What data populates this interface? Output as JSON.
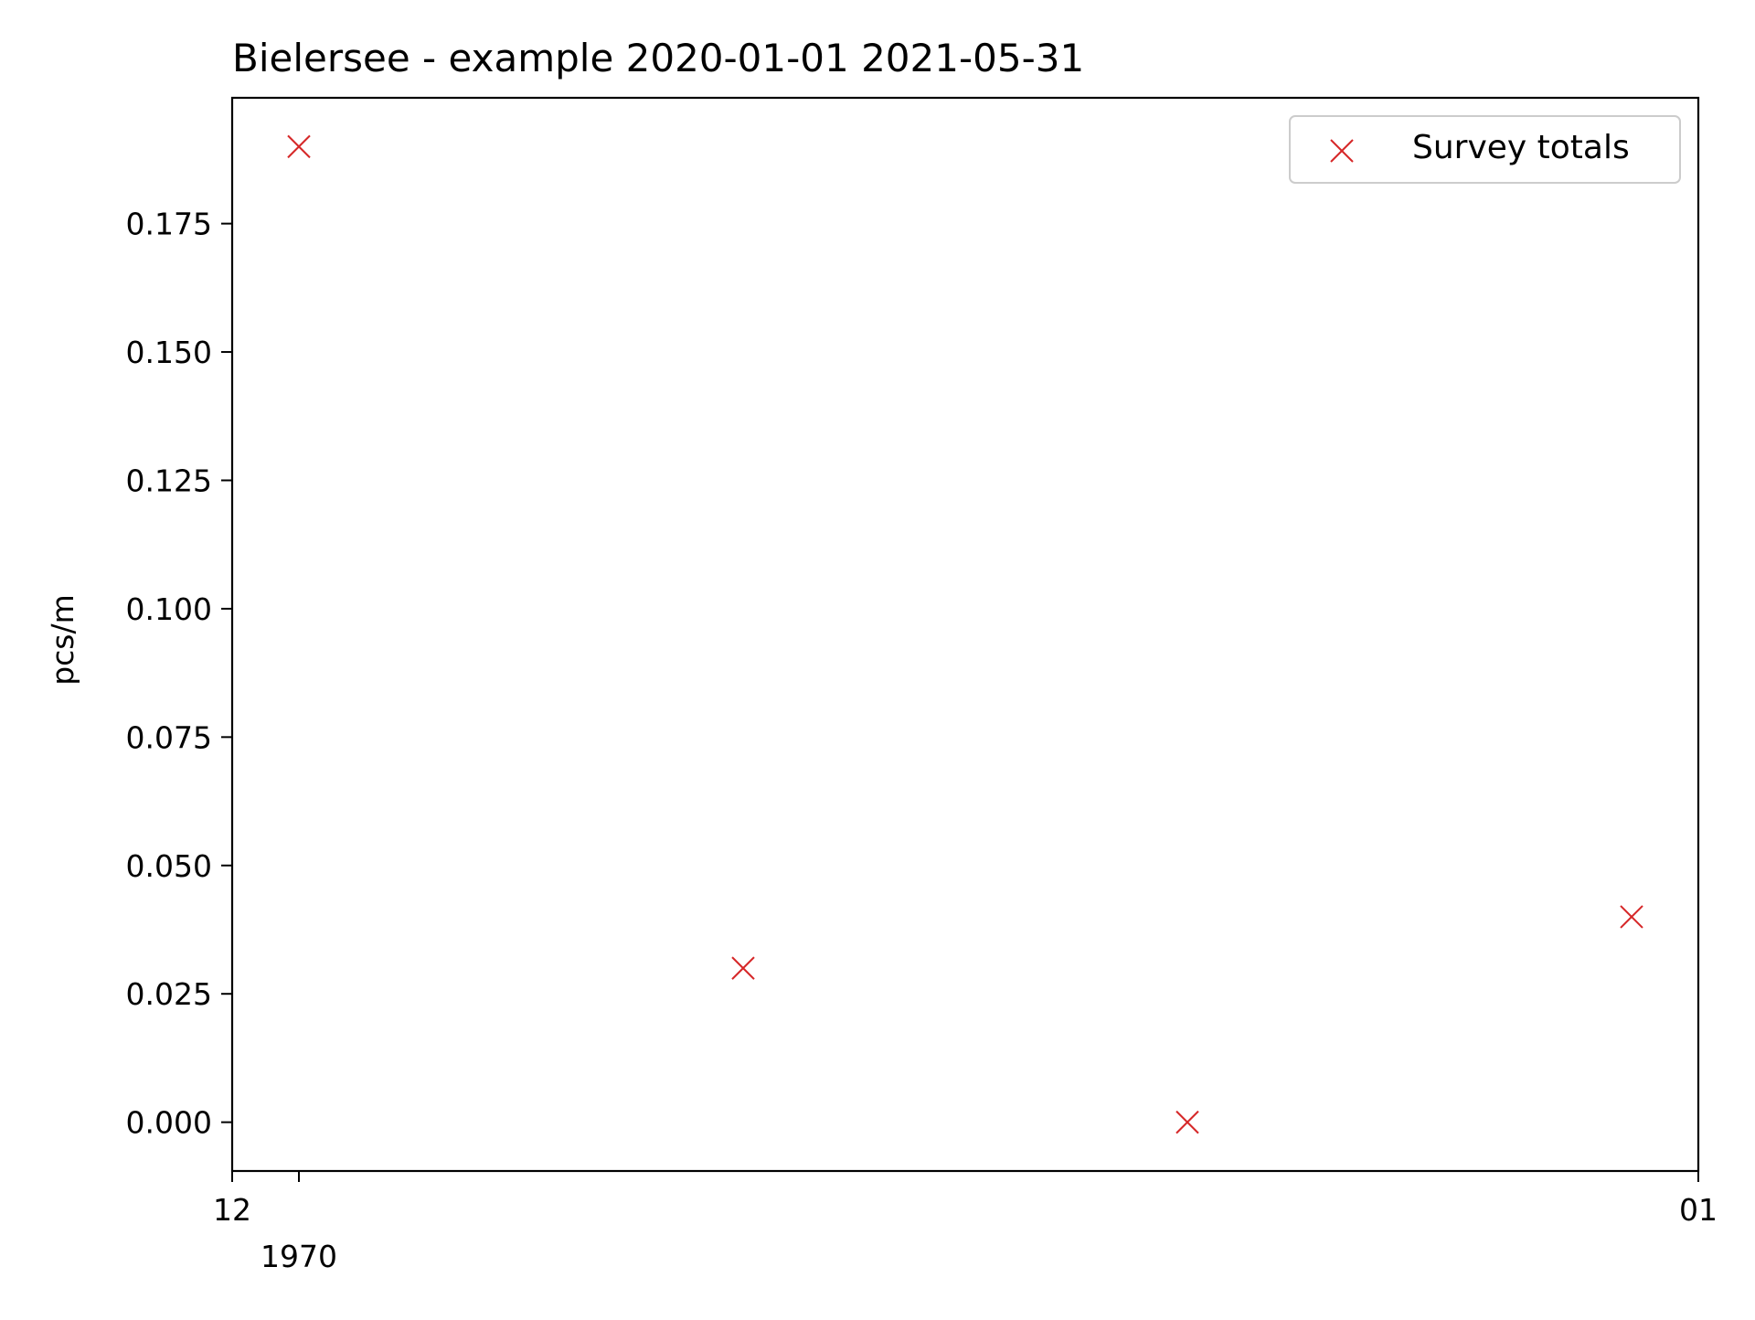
{
  "chart_data": {
    "type": "scatter",
    "title": "Bielersee - example 2020-01-01 2021-05-31",
    "xlabel": "",
    "ylabel": "pcs/m",
    "x_tick_labels": [
      {
        "text": "12",
        "sublabel": ""
      },
      {
        "text": "",
        "sublabel": "1970"
      },
      {
        "text": "01",
        "sublabel": ""
      }
    ],
    "y_ticks": [
      0.0,
      0.025,
      0.05,
      0.075,
      0.1,
      0.125,
      0.15,
      0.175
    ],
    "y_tick_labels": [
      "0.000",
      "0.025",
      "0.050",
      "0.075",
      "0.100",
      "0.125",
      "0.150",
      "0.175"
    ],
    "ylim": [
      -0.0095,
      0.1995
    ],
    "series": [
      {
        "name": "Survey totals",
        "marker": "x",
        "color": "#d62728",
        "points": [
          {
            "x": 0,
            "y": 0.19
          },
          {
            "x": 1,
            "y": 0.03
          },
          {
            "x": 2,
            "y": 0.0
          },
          {
            "x": 3,
            "y": 0.04
          }
        ]
      }
    ],
    "grid": false,
    "legend_position": "top-right"
  }
}
